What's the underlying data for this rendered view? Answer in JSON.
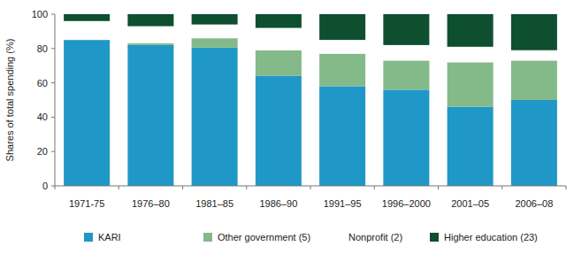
{
  "chart_data": {
    "type": "bar",
    "stacked": true,
    "y_label": "Shares of total spending (%)",
    "categories": [
      "1971-75",
      "1976–80",
      "1981–85",
      "1986–90",
      "1991–95",
      "1996–2000",
      "2001–05",
      "2006–08"
    ],
    "series": [
      {
        "name": "KARI",
        "color": "#1f98c8",
        "values": [
          85,
          82,
          80.5,
          64,
          58,
          56,
          46,
          50
        ]
      },
      {
        "name": "Other government (5)",
        "color": "#84b98a",
        "values": [
          0,
          1,
          5.5,
          15,
          19,
          17,
          26,
          23
        ]
      },
      {
        "name": "Nonprofit (2)",
        "color": "#ffffff",
        "values": [
          11,
          10,
          8,
          13,
          8,
          9,
          9,
          6
        ]
      },
      {
        "name": "Higher education (23)",
        "color": "#0e4f30",
        "values": [
          4,
          7,
          6,
          8,
          15,
          18,
          19,
          21
        ]
      }
    ],
    "ylim": [
      0,
      100
    ],
    "yticks": [
      0,
      20,
      40,
      60,
      80,
      100
    ],
    "grid": false,
    "legend": "bottom"
  }
}
